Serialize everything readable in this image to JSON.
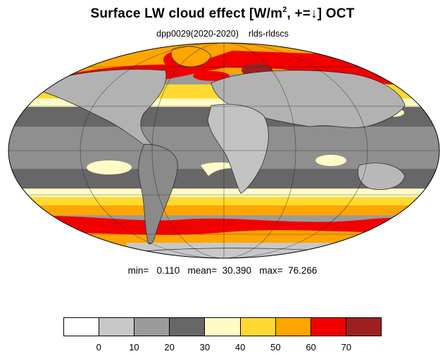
{
  "title": {
    "pre": "Surface LW cloud effect [W/m",
    "sup": "2",
    "post": ", +=↓]  OCT"
  },
  "subtitle": {
    "run": "dpp0029(2020-2020)",
    "variable": "rlds-rldscs"
  },
  "stats": {
    "text": "min=   0.110   mean=  30.390   max=  76.266",
    "min": 0.11,
    "mean": 30.39,
    "max": 76.266
  },
  "colorbar": {
    "colors": [
      "#ffffff",
      "#c8c8c8",
      "#9b9b9b",
      "#676767",
      "#fffac6",
      "#ffd92f",
      "#ffa500",
      "#f20000",
      "#9d2020"
    ],
    "ticks": [
      "0",
      "10",
      "20",
      "30",
      "40",
      "50",
      "60",
      "70"
    ]
  },
  "map": {
    "projection": "mollweide",
    "ocean_shading": "grey",
    "coastline_color": "#222222"
  }
}
